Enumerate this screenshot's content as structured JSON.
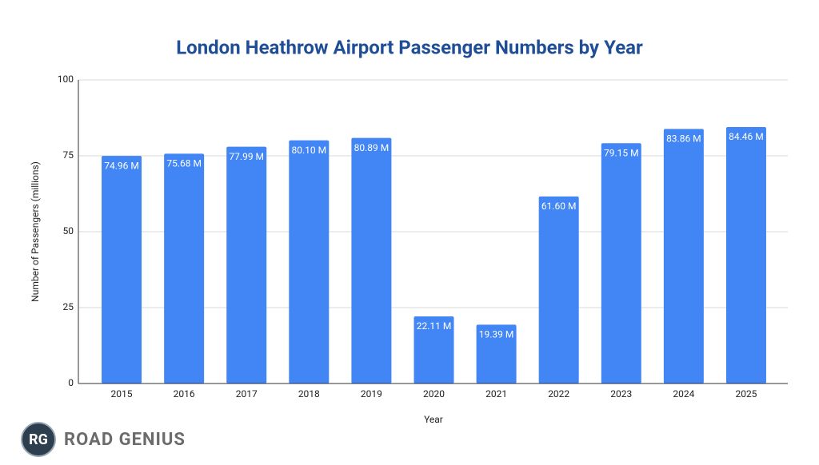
{
  "chart_data": {
    "type": "bar",
    "title": "London Heathrow Airport Passenger Numbers by Year",
    "x_label": "Year",
    "y_label": "Number of Passengers (millions)",
    "categories": [
      "2015",
      "2016",
      "2017",
      "2018",
      "2019",
      "2020",
      "2021",
      "2022",
      "2023",
      "2024",
      "2025"
    ],
    "values": [
      74.96,
      75.68,
      77.99,
      80.1,
      80.89,
      22.11,
      19.39,
      61.6,
      79.15,
      83.86,
      84.46
    ],
    "value_labels": [
      "74.96 M",
      "75.68 M",
      "77.99 M",
      "80.10 M",
      "80.89 M",
      "22.11 M",
      "19.39 M",
      "61.60 M",
      "79.15 M",
      "83.86 M",
      "84.46 M"
    ],
    "color": "#4285f4",
    "ylim": [
      0,
      100
    ],
    "yticks": [
      0,
      25,
      50,
      75,
      100
    ],
    "grid": true
  },
  "brand": {
    "mark": "RG",
    "name": "ROAD GENIUS"
  }
}
